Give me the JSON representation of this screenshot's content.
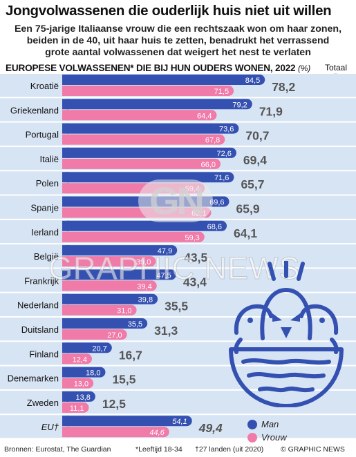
{
  "title": "Jongvolwassenen die ouderlijk huis niet uit willen",
  "subtitle_lines": [
    "Een 75-jarige Italiaanse vrouw die een rechtszaak won om haar zonen,",
    "beiden in de 40, uit haar huis te zetten, benadrukt het verrassend",
    "grote aantal volwassenen dat weigert het nest te verlaten"
  ],
  "section_title": "EUROPESE VOLWASSENEN* DIE BIJ HUN OUDERS WONEN, 2022",
  "section_unit": "(%)",
  "totaal_label": "Totaal",
  "totaal_arrow": "▼",
  "colors": {
    "man": "#3451b2",
    "vrouw": "#f07aa8",
    "stripe": "#d7e4f4",
    "total_text": "#555555"
  },
  "chart_data": {
    "type": "bar",
    "categories": [
      "Kroatië",
      "Griekenland",
      "Portugal",
      "Italië",
      "Polen",
      "Spanje",
      "Ierland",
      "België",
      "Frankrijk",
      "Nederland",
      "Duitsland",
      "Finland",
      "Denemarken",
      "Zweden",
      "EU"
    ],
    "category_suffix": {
      "EU": "†"
    },
    "series": [
      {
        "name": "Man",
        "values": [
          84.5,
          79.2,
          73.6,
          72.6,
          71.6,
          69.6,
          68.6,
          47.9,
          47.5,
          39.8,
          35.5,
          20.7,
          18.0,
          13.8,
          54.1
        ]
      },
      {
        "name": "Vrouw",
        "values": [
          71.5,
          64.4,
          67.8,
          66.0,
          59.4,
          62.1,
          59.3,
          39.0,
          39.4,
          31.0,
          27.0,
          12.4,
          13.0,
          11.1,
          44.6
        ]
      }
    ],
    "totals": [
      78.2,
      71.9,
      70.7,
      69.4,
      65.7,
      65.9,
      64.1,
      43.5,
      43.4,
      35.5,
      31.3,
      16.7,
      15.5,
      12.5,
      49.4
    ],
    "value_labels": {
      "man": [
        "84,5",
        "79,2",
        "73,6",
        "72,6",
        "71,6",
        "69,6",
        "68,6",
        "47,9",
        "47,5",
        "39,8",
        "35,5",
        "20,7",
        "18,0",
        "13,8",
        "54,1"
      ],
      "vrouw": [
        "71,5",
        "64,4",
        "67,8",
        "66,0",
        "59,4",
        "62,1",
        "59,3",
        "39,0",
        "39,4",
        "31,0",
        "27,0",
        "12,4",
        "13,0",
        "11,1",
        "44,6"
      ],
      "totals": [
        "78,2",
        "71,9",
        "70,7",
        "69,4",
        "65,7",
        "65,9",
        "64,1",
        "43,5",
        "43,4",
        "35,5",
        "31,3",
        "16,7",
        "15,5",
        "12,5",
        "49,4"
      ]
    },
    "ylim": [
      0,
      100
    ],
    "grid": false
  },
  "legend": {
    "man": "Man",
    "vrouw": "Vrouw"
  },
  "watermark": {
    "logo": "GN",
    "text": "GRAPHIC NEWS"
  },
  "footer": {
    "sources": "Bronnen: Eurostat, The Guardian",
    "note_age": "*Leeftijd 18-34",
    "note_eu": "†27 landen (uit 2020)",
    "publisher": "© GRAPHIC NEWS"
  },
  "illustration": "bird-nest-icon"
}
